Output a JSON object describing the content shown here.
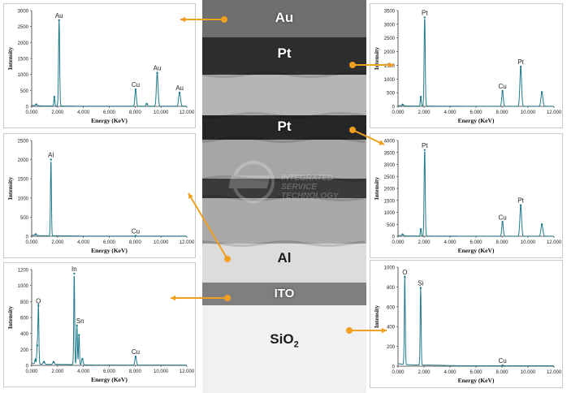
{
  "layers": [
    {
      "id": "au",
      "label": "Au",
      "color": "#6f6f6f"
    },
    {
      "id": "pt1",
      "label": "Pt",
      "color": "#2e2e2e"
    },
    {
      "id": "mid1",
      "label": "",
      "color": "#b5b5b5"
    },
    {
      "id": "pt2",
      "label": "Pt",
      "color": "#262626"
    },
    {
      "id": "mid2",
      "label": "",
      "color": "#a6a6a6"
    },
    {
      "id": "dark3",
      "label": "",
      "color": "#3a3a3a"
    },
    {
      "id": "mid3",
      "label": "",
      "color": "#a9a9a9"
    },
    {
      "id": "al",
      "label": "Al",
      "color": "#dcdcdc"
    },
    {
      "id": "ito",
      "label": "ITO",
      "color": "#7f7f7f"
    },
    {
      "id": "sio2",
      "label": "SiO",
      "label_sub": "2",
      "color": "#f1f1f1"
    }
  ],
  "watermark": {
    "logo": "iST",
    "line1": "INTEGRATED",
    "line2": "SERVICE",
    "line3": "TECHNOLOGY"
  },
  "colors": {
    "line": "#1f7a8c",
    "arrow": "#f0a020"
  },
  "chart_data": [
    {
      "id": "au-spectrum",
      "type": "line",
      "layer": "Au",
      "xlabel": "Energy (KeV)",
      "ylabel": "Intensity",
      "xlim": [
        0,
        12
      ],
      "ylim": [
        0,
        3000
      ],
      "yticks": [
        "0",
        "500",
        "1000",
        "1500",
        "2000",
        "2500",
        "3000"
      ],
      "xticks": [
        "0.000",
        "2.000",
        "4.000",
        "6.000",
        "8.000",
        "10.000",
        "12.000"
      ],
      "peaks": [
        {
          "x": 0.35,
          "y": 60,
          "w": 0.08
        },
        {
          "x": 1.75,
          "y": 300,
          "w": 0.05
        },
        {
          "x": 2.12,
          "y": 2700,
          "w": 0.06
        },
        {
          "x": 8.04,
          "y": 530,
          "w": 0.08
        },
        {
          "x": 8.9,
          "y": 80,
          "w": 0.08
        },
        {
          "x": 9.71,
          "y": 1050,
          "w": 0.09
        },
        {
          "x": 11.44,
          "y": 430,
          "w": 0.1
        }
      ],
      "annotations": [
        {
          "text": "Au",
          "x": 2.12,
          "y": 2700
        },
        {
          "text": "Cu",
          "x": 8.04,
          "y": 530
        },
        {
          "text": "Au",
          "x": 9.71,
          "y": 1050
        },
        {
          "text": "Au",
          "x": 11.44,
          "y": 430
        }
      ]
    },
    {
      "id": "pt1-spectrum",
      "type": "line",
      "layer": "Pt",
      "xlabel": "Energy (KeV)",
      "ylabel": "Intensity",
      "xlim": [
        0,
        12
      ],
      "ylim": [
        0,
        3500
      ],
      "yticks": [
        "0",
        "500",
        "1000",
        "1500",
        "2000",
        "2500",
        "3000",
        "3500"
      ],
      "xticks": [
        "0.000",
        "2.000",
        "4.000",
        "6.000",
        "8.000",
        "10.000",
        "12.000"
      ],
      "peaks": [
        {
          "x": 0.35,
          "y": 60,
          "w": 0.08
        },
        {
          "x": 1.75,
          "y": 350,
          "w": 0.05
        },
        {
          "x": 2.05,
          "y": 3250,
          "w": 0.06
        },
        {
          "x": 8.04,
          "y": 560,
          "w": 0.08
        },
        {
          "x": 9.44,
          "y": 1450,
          "w": 0.09
        },
        {
          "x": 11.07,
          "y": 520,
          "w": 0.1
        }
      ],
      "annotations": [
        {
          "text": "Pt",
          "x": 2.05,
          "y": 3250
        },
        {
          "text": "Cu",
          "x": 8.04,
          "y": 560
        },
        {
          "text": "Pt",
          "x": 9.44,
          "y": 1450
        }
      ]
    },
    {
      "id": "al-spectrum",
      "type": "line",
      "layer": "Al",
      "xlabel": "Energy (KeV)",
      "ylabel": "Intensity",
      "xlim": [
        0,
        12
      ],
      "ylim": [
        0,
        2500
      ],
      "yticks": [
        "0",
        "500",
        "1000",
        "1500",
        "2000",
        "2500"
      ],
      "xticks": [
        "0.000",
        "2.000",
        "4.000",
        "6.000",
        "8.000",
        "10.000",
        "12.000"
      ],
      "peaks": [
        {
          "x": 0.3,
          "y": 50,
          "w": 0.08
        },
        {
          "x": 1.49,
          "y": 2000,
          "w": 0.05
        },
        {
          "x": 8.04,
          "y": 12,
          "w": 0.08
        }
      ],
      "annotations": [
        {
          "text": "Al",
          "x": 1.49,
          "y": 2000
        },
        {
          "text": "Cu",
          "x": 8.04,
          "y": 12
        }
      ]
    },
    {
      "id": "pt2-spectrum",
      "type": "line",
      "layer": "Pt",
      "xlabel": "Energy (KeV)",
      "ylabel": "Intensity",
      "xlim": [
        0,
        12
      ],
      "ylim": [
        0,
        4000
      ],
      "yticks": [
        "0",
        "500",
        "1000",
        "1500",
        "2000",
        "2500",
        "3000",
        "3500",
        "4000"
      ],
      "xticks": [
        "0.000",
        "2.000",
        "4.000",
        "6.000",
        "8.000",
        "10.000",
        "12.000"
      ],
      "peaks": [
        {
          "x": 0.35,
          "y": 80,
          "w": 0.08
        },
        {
          "x": 1.75,
          "y": 300,
          "w": 0.05
        },
        {
          "x": 2.05,
          "y": 3600,
          "w": 0.06
        },
        {
          "x": 8.04,
          "y": 600,
          "w": 0.08
        },
        {
          "x": 9.44,
          "y": 1300,
          "w": 0.09
        },
        {
          "x": 11.07,
          "y": 500,
          "w": 0.1
        }
      ],
      "annotations": [
        {
          "text": "Pt",
          "x": 2.05,
          "y": 3600
        },
        {
          "text": "Cu",
          "x": 8.04,
          "y": 600
        },
        {
          "text": "Pt",
          "x": 9.44,
          "y": 1300
        }
      ]
    },
    {
      "id": "ito-spectrum",
      "type": "line",
      "layer": "ITO",
      "xlabel": "Energy (KeV)",
      "ylabel": "Intensity",
      "xlim": [
        0,
        12
      ],
      "ylim": [
        0,
        1200
      ],
      "yticks": [
        "0",
        "200",
        "400",
        "600",
        "800",
        "1000",
        "1200"
      ],
      "xticks": [
        "0.000",
        "2.000",
        "4.000",
        "6.000",
        "8.000",
        "10.000",
        "12.000"
      ],
      "peaks": [
        {
          "x": 0.28,
          "y": 60,
          "w": 0.05
        },
        {
          "x": 0.43,
          "y": 250,
          "w": 0.05
        },
        {
          "x": 0.52,
          "y": 750,
          "w": 0.05
        },
        {
          "x": 0.95,
          "y": 40,
          "w": 0.08
        },
        {
          "x": 1.7,
          "y": 40,
          "w": 0.08
        },
        {
          "x": 3.29,
          "y": 1150,
          "w": 0.05
        },
        {
          "x": 3.5,
          "y": 500,
          "w": 0.05
        },
        {
          "x": 3.66,
          "y": 380,
          "w": 0.05
        },
        {
          "x": 3.92,
          "y": 80,
          "w": 0.08
        },
        {
          "x": 8.04,
          "y": 110,
          "w": 0.08
        }
      ],
      "annotations": [
        {
          "text": "O",
          "x": 0.52,
          "y": 750
        },
        {
          "text": "In",
          "x": 3.29,
          "y": 1150
        },
        {
          "text": "Sn",
          "x": 3.5,
          "y": 500
        },
        {
          "text": "Cu",
          "x": 8.04,
          "y": 110
        }
      ]
    },
    {
      "id": "sio2-spectrum",
      "type": "line",
      "layer": "SiO2",
      "xlabel": "Energy (KeV)",
      "ylabel": "Intensity",
      "xlim": [
        0,
        12
      ],
      "ylim": [
        0,
        1000
      ],
      "yticks": [
        "0",
        "200",
        "400",
        "600",
        "800",
        "1000"
      ],
      "xticks": [
        "0.000",
        "2.000",
        "4.000",
        "6.000",
        "8.000",
        "10.000",
        "12.000"
      ],
      "peaks": [
        {
          "x": 0.52,
          "y": 900,
          "w": 0.05
        },
        {
          "x": 1.74,
          "y": 790,
          "w": 0.05
        },
        {
          "x": 8.04,
          "y": 8,
          "w": 0.08
        }
      ],
      "annotations": [
        {
          "text": "O",
          "x": 0.52,
          "y": 900
        },
        {
          "text": "Si",
          "x": 1.74,
          "y": 790
        },
        {
          "text": "Cu",
          "x": 8.04,
          "y": 8
        }
      ]
    }
  ]
}
